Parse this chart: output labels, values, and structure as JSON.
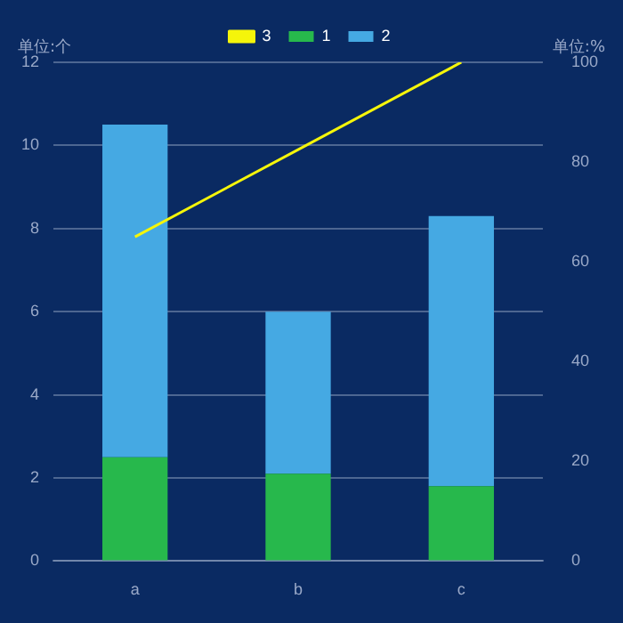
{
  "chart_data": {
    "type": "bar",
    "stacked": true,
    "categories": [
      "a",
      "b",
      "c"
    ],
    "series": [
      {
        "name": "1",
        "color": "#27b84c",
        "values": [
          2.5,
          2.1,
          1.8
        ]
      },
      {
        "name": "2",
        "color": "#45a9e3",
        "values": [
          8,
          3.9,
          6.5
        ]
      },
      {
        "name": "3",
        "type": "line",
        "axis": "y2",
        "color": "#f5f50a",
        "values": [
          65,
          82.5,
          100
        ]
      }
    ],
    "ylabel": "单位:个",
    "y2label": "单位:%",
    "ylim": [
      0,
      12
    ],
    "yticks": [
      0,
      2,
      4,
      6,
      8,
      10,
      12
    ],
    "y2lim": [
      0,
      100
    ],
    "y2ticks": [
      0,
      20,
      40,
      60,
      80,
      100
    ],
    "grid": "y",
    "legend": "top",
    "marker": "none"
  }
}
